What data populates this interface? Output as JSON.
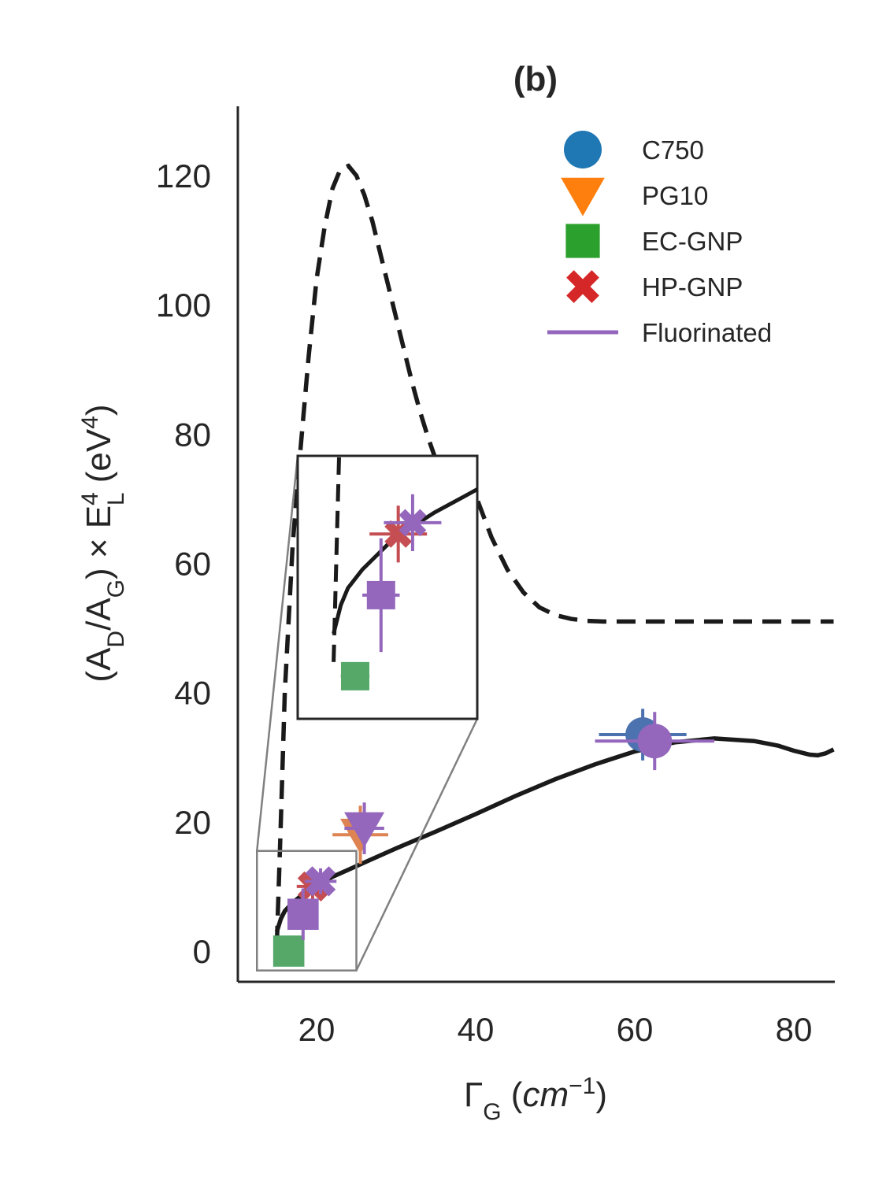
{
  "chart_data": {
    "type": "scatter",
    "title": "(b)",
    "xlabel": {
      "base": "Γ",
      "sub": "G",
      "unit_open": " (",
      "unit": "cm",
      "sup": "−1",
      "unit_close": ")"
    },
    "ylabel": {
      "p1": "(A",
      "s1": "D",
      "p2": "/A",
      "s2": "G",
      "p3": ") × E",
      "sup3": "4",
      "sub3": "L",
      "p4": " (eV",
      "sup4": "4",
      "p5": ")"
    },
    "xlim": [
      10,
      85
    ],
    "ylim": [
      -5,
      130
    ],
    "xticks": [
      20,
      40,
      60,
      80
    ],
    "yticks": [
      0,
      20,
      40,
      60,
      80,
      100,
      120
    ],
    "legend_position": "top-right",
    "grid": false,
    "legend": [
      {
        "label": "C750",
        "marker": "circle",
        "color": "#1f77b4"
      },
      {
        "label": "PG10",
        "marker": "triangle-down",
        "color": "#ff7f0e"
      },
      {
        "label": "EC-GNP",
        "marker": "square",
        "color": "#2ca02c"
      },
      {
        "label": "HP-GNP",
        "marker": "x",
        "color": "#d62728"
      },
      {
        "label": "Fluorinated",
        "marker": "line",
        "color": "#9467bd"
      }
    ],
    "curves": [
      {
        "style": "dashed",
        "color": "#1a1a1a",
        "x": [
          15,
          15.5,
          16,
          17,
          18,
          19,
          20,
          21,
          22,
          23,
          24,
          25,
          26,
          27,
          28,
          29,
          30,
          31,
          32,
          33,
          34,
          35,
          36,
          37,
          38,
          39,
          40,
          42,
          44,
          46,
          48,
          50,
          52,
          54,
          56,
          58,
          60,
          65,
          70,
          75,
          80,
          85
        ],
        "y": [
          1,
          20,
          40,
          63,
          78,
          92,
          104,
          112,
          118,
          121,
          121.5,
          120,
          117,
          113,
          108,
          103,
          98,
          93,
          88,
          83.5,
          79.5,
          76,
          73.2,
          71,
          70,
          70.2,
          70.5,
          64,
          59,
          55.5,
          53.2,
          52,
          51.4,
          51.1,
          51,
          51,
          51,
          51,
          51,
          51,
          51,
          51
        ]
      },
      {
        "style": "solid",
        "color": "#1a1a1a",
        "x": [
          15,
          15.5,
          16,
          17,
          18,
          19,
          20,
          22,
          24,
          26,
          28,
          30,
          35,
          40,
          45,
          50,
          55,
          60,
          65,
          70,
          75,
          78,
          80,
          82,
          83,
          84,
          85
        ],
        "y": [
          3,
          5,
          6.2,
          7.5,
          8.5,
          9.5,
          10.2,
          11.5,
          12.6,
          13.7,
          14.8,
          15.9,
          18.5,
          21.2,
          24,
          26.6,
          28.9,
          30.9,
          32.3,
          32.9,
          32.5,
          31.8,
          31,
          30.4,
          30.3,
          30.6,
          31.2
        ]
      }
    ],
    "points": [
      {
        "series": "C750",
        "marker": "circle",
        "color": "#4c72b0",
        "x": 61,
        "y": 33.5,
        "xerr": 5.5,
        "yerr": 4
      },
      {
        "series": "C750 Fluorinated",
        "marker": "circle",
        "color": "#9467bd",
        "x": 62.5,
        "y": 32.5,
        "xerr": 7.5,
        "yerr": 4.5
      },
      {
        "series": "PG10",
        "marker": "triangle-down",
        "color": "#dd8452",
        "x": 25.5,
        "y": 18,
        "xerr": 3.5,
        "yerr": 4.5
      },
      {
        "series": "PG10 Fluorinated",
        "marker": "triangle-down",
        "color": "#9467bd",
        "x": 26,
        "y": 19,
        "xerr": 2.5,
        "yerr": 4
      },
      {
        "series": "EC-GNP",
        "marker": "square",
        "color": "#55a868",
        "x": 16.5,
        "y": 0,
        "xerr": 1,
        "yerr": 0.3
      },
      {
        "series": "HP-GNP",
        "marker": "x",
        "color": "#c44e52",
        "x": 19.5,
        "y": 10,
        "xerr": 2,
        "yerr": 2
      },
      {
        "series": "HP-GNP Fluorinated",
        "marker": "x",
        "color": "#9467bd",
        "x": 20.5,
        "y": 10.8,
        "xerr": 2,
        "yerr": 2
      },
      {
        "series": "EC-GNP Fluorinated",
        "marker": "square",
        "color": "#9467bd",
        "x": 18.3,
        "y": 5.7,
        "xerr": 1.3,
        "yerr": 4
      }
    ],
    "inset": {
      "source_xlim": [
        12.5,
        25
      ],
      "source_ylim": [
        -3,
        15.5
      ],
      "style": "zoom box connected to magnified inset"
    }
  }
}
